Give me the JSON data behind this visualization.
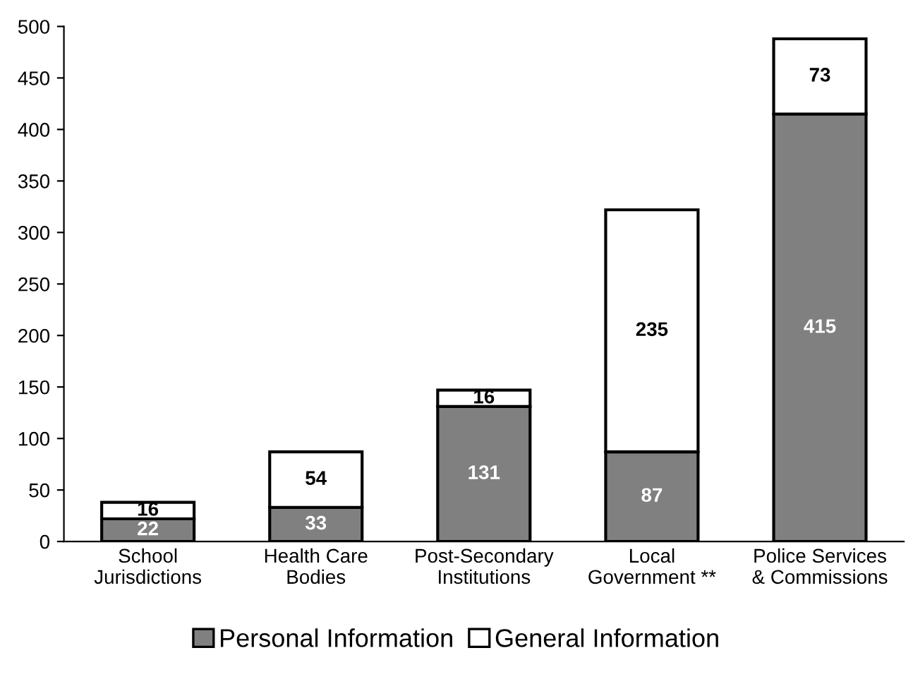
{
  "chart_data": {
    "type": "bar",
    "stacked": true,
    "data_labels": true,
    "categories": [
      "School\nJurisdictions",
      "Health Care\nBodies",
      "Post-Secondary\nInstitutions",
      "Local\nGovernment **",
      "Police Services\n& Commissions"
    ],
    "series": [
      {
        "name": "Personal Information",
        "color": "#808080",
        "values": [
          22,
          33,
          131,
          87,
          415
        ]
      },
      {
        "name": "General Information",
        "color": "#ffffff",
        "values": [
          16,
          54,
          16,
          235,
          73
        ]
      }
    ],
    "ylim": [
      0,
      500
    ],
    "yticks": [
      0,
      50,
      100,
      150,
      200,
      250,
      300,
      350,
      400,
      450,
      500
    ],
    "grid": false,
    "legend": "bottom"
  }
}
